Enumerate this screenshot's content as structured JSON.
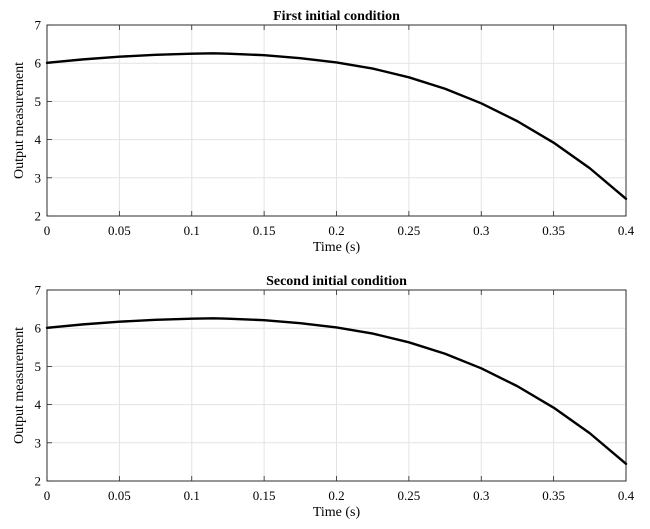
{
  "chart_data": [
    {
      "type": "line",
      "title": "First initial condition",
      "xlabel": "Time (s)",
      "ylabel": "Output measurement",
      "xlim": [
        0,
        0.4
      ],
      "ylim": [
        2,
        7
      ],
      "xticks": [
        0,
        0.05,
        0.1,
        0.15,
        0.2,
        0.25,
        0.3,
        0.35,
        0.4
      ],
      "xtick_labels": [
        "0",
        "0.05",
        "0.1",
        "0.15",
        "0.2",
        "0.25",
        "0.3",
        "0.35",
        "0.4"
      ],
      "yticks": [
        2,
        3,
        4,
        5,
        6,
        7
      ],
      "ytick_labels": [
        "2",
        "3",
        "4",
        "5",
        "6",
        "7"
      ],
      "grid": true,
      "series": [
        {
          "color": "#000000",
          "x": [
            0,
            0.025,
            0.05,
            0.075,
            0.1,
            0.115,
            0.125,
            0.15,
            0.175,
            0.2,
            0.225,
            0.25,
            0.275,
            0.3,
            0.325,
            0.35,
            0.375,
            0.4
          ],
          "y": [
            6.01,
            6.1,
            6.17,
            6.22,
            6.25,
            6.26,
            6.25,
            6.21,
            6.13,
            6.02,
            5.86,
            5.63,
            5.33,
            4.95,
            4.48,
            3.92,
            3.25,
            2.45
          ]
        }
      ]
    },
    {
      "type": "line",
      "title": "Second initial condition",
      "xlabel": "Time (s)",
      "ylabel": "Output measurement",
      "xlim": [
        0,
        0.4
      ],
      "ylim": [
        2,
        7
      ],
      "xticks": [
        0,
        0.05,
        0.1,
        0.15,
        0.2,
        0.25,
        0.3,
        0.35,
        0.4
      ],
      "xtick_labels": [
        "0",
        "0.05",
        "0.1",
        "0.15",
        "0.2",
        "0.25",
        "0.3",
        "0.35",
        "0.4"
      ],
      "yticks": [
        2,
        3,
        4,
        5,
        6,
        7
      ],
      "ytick_labels": [
        "2",
        "3",
        "4",
        "5",
        "6",
        "7"
      ],
      "grid": true,
      "series": [
        {
          "color": "#000000",
          "x": [
            0,
            0.025,
            0.05,
            0.075,
            0.1,
            0.115,
            0.125,
            0.15,
            0.175,
            0.2,
            0.225,
            0.25,
            0.275,
            0.3,
            0.325,
            0.35,
            0.375,
            0.4
          ],
          "y": [
            6.01,
            6.1,
            6.17,
            6.22,
            6.25,
            6.26,
            6.25,
            6.21,
            6.13,
            6.02,
            5.86,
            5.63,
            5.33,
            4.95,
            4.48,
            3.92,
            3.25,
            2.45
          ]
        }
      ]
    }
  ]
}
